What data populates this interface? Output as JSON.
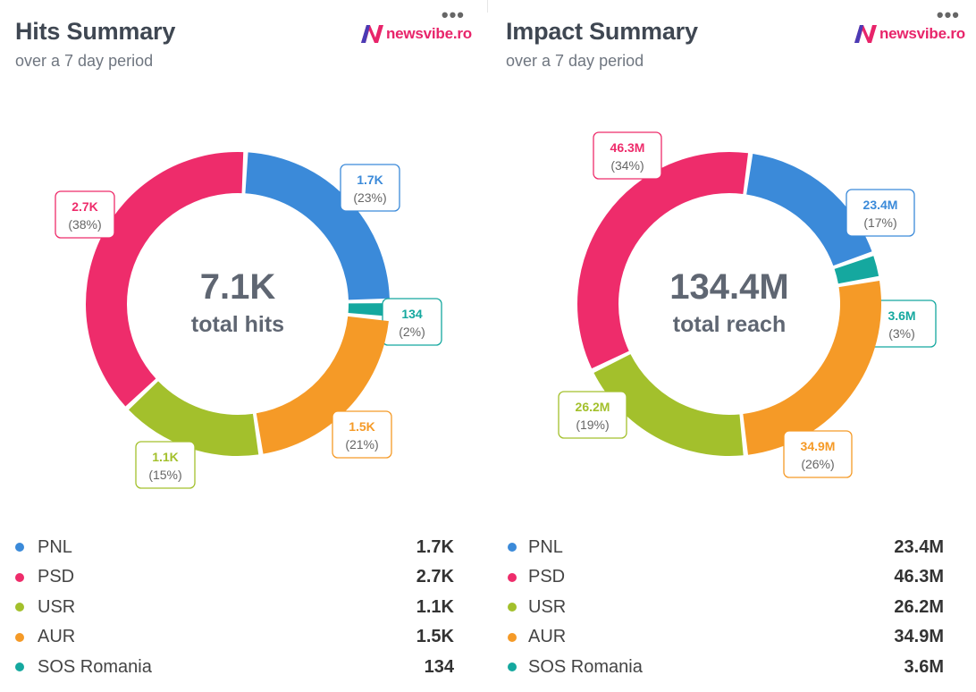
{
  "brand": {
    "name": "newsvibe.ro"
  },
  "charts": [
    {
      "id": "hits",
      "title": "Hits Summary",
      "subtitle": "over a 7 day period",
      "center_value": "7.1K",
      "center_label": "total hits",
      "menu": "•••",
      "legend": [
        {
          "name": "PNL",
          "value": "1.7K",
          "color": "#3b8ad9"
        },
        {
          "name": "PSD",
          "value": "2.7K",
          "color": "#ee2c6b"
        },
        {
          "name": "USR",
          "value": "1.1K",
          "color": "#a3c02c"
        },
        {
          "name": "AUR",
          "value": "1.5K",
          "color": "#f59a27"
        },
        {
          "name": "SOS Romania",
          "value": "134",
          "color": "#15a89f"
        }
      ]
    },
    {
      "id": "impact",
      "title": "Impact Summary",
      "subtitle": "over a 7 day period",
      "center_value": "134.4M",
      "center_label": "total reach",
      "menu": "•••",
      "legend": [
        {
          "name": "PNL",
          "value": "23.4M",
          "color": "#3b8ad9"
        },
        {
          "name": "PSD",
          "value": "46.3M",
          "color": "#ee2c6b"
        },
        {
          "name": "USR",
          "value": "26.2M",
          "color": "#a3c02c"
        },
        {
          "name": "AUR",
          "value": "34.9M",
          "color": "#f59a27"
        },
        {
          "name": "SOS Romania",
          "value": "3.6M",
          "color": "#15a89f"
        }
      ]
    }
  ],
  "chart_data": [
    {
      "type": "pie",
      "title": "Hits Summary",
      "subtitle": "over a 7 day period",
      "total": "7.1K",
      "total_label": "total hits",
      "slices": [
        {
          "name": "PNL",
          "value": 1700,
          "label": "1.7K",
          "percent_label": "(23%)",
          "color": "#3b8ad9"
        },
        {
          "name": "SOS Romania",
          "value": 134,
          "label": "134",
          "percent_label": "(2%)",
          "color": "#15a89f"
        },
        {
          "name": "AUR",
          "value": 1500,
          "label": "1.5K",
          "percent_label": "(21%)",
          "color": "#f59a27"
        },
        {
          "name": "USR",
          "value": 1100,
          "label": "1.1K",
          "percent_label": "(15%)",
          "color": "#a3c02c"
        },
        {
          "name": "PSD",
          "value": 2700,
          "label": "2.7K",
          "percent_label": "(38%)",
          "color": "#ee2c6b"
        }
      ]
    },
    {
      "type": "pie",
      "title": "Impact Summary",
      "subtitle": "over a 7 day period",
      "total": "134.4M",
      "total_label": "total reach",
      "slices": [
        {
          "name": "PNL",
          "value": 23.4,
          "label": "23.4M",
          "percent_label": "(17%)",
          "color": "#3b8ad9"
        },
        {
          "name": "SOS Romania",
          "value": 3.6,
          "label": "3.6M",
          "percent_label": "(3%)",
          "color": "#15a89f"
        },
        {
          "name": "AUR",
          "value": 34.9,
          "label": "34.9M",
          "percent_label": "(26%)",
          "color": "#f59a27"
        },
        {
          "name": "USR",
          "value": 26.2,
          "label": "26.2M",
          "percent_label": "(19%)",
          "color": "#a3c02c"
        },
        {
          "name": "PSD",
          "value": 46.3,
          "label": "46.3M",
          "percent_label": "(34%)",
          "color": "#ee2c6b"
        }
      ]
    }
  ]
}
